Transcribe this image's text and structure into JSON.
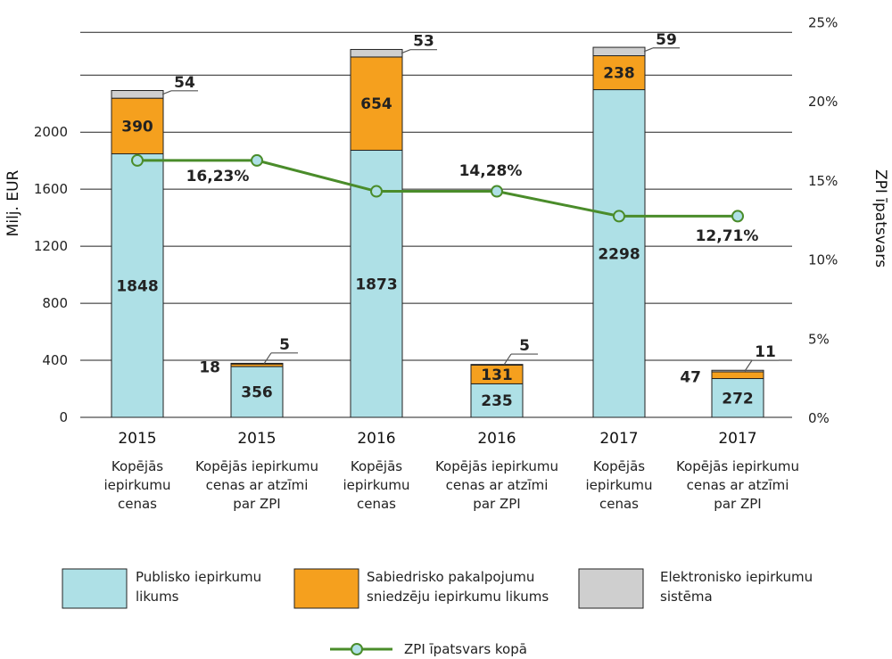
{
  "chart_data": {
    "type": "bar",
    "stacked": true,
    "grid": true,
    "legend_position": "bottom",
    "y_label": "Milj. EUR",
    "y2_label": "ZPI īpatsvars",
    "ylim": [
      0,
      2700
    ],
    "y_ticks": [
      "0",
      "400",
      "800",
      "1200",
      "1600",
      "2000"
    ],
    "y_tick_values": [
      0,
      400,
      800,
      1200,
      1600,
      2000
    ],
    "y2lim": [
      0,
      25
    ],
    "y2_ticks": [
      "0%",
      "5%",
      "10%",
      "15%",
      "20%",
      "25%"
    ],
    "y2_tick_values": [
      0,
      5,
      10,
      15,
      20,
      25
    ],
    "categories": [
      {
        "year": "2015",
        "desc": [
          "Kopējās",
          "iepirkumu",
          "cenas"
        ]
      },
      {
        "year": "2015",
        "desc": [
          "Kopējās iepirkumu",
          "cenas ar atzīmi",
          "par ZPI"
        ]
      },
      {
        "year": "2016",
        "desc": [
          "Kopējās",
          "iepirkumu",
          "cenas"
        ]
      },
      {
        "year": "2016",
        "desc": [
          "Kopējās iepirkumu",
          "cenas ar atzīmi",
          "par ZPI"
        ]
      },
      {
        "year": "2017",
        "desc": [
          "Kopējās",
          "iepirkumu",
          "cenas"
        ]
      },
      {
        "year": "2017",
        "desc": [
          "Kopējās iepirkumu",
          "cenas ar atzīmi",
          "par ZPI"
        ]
      }
    ],
    "series": [
      {
        "name": "Publisko iepirkumu likums",
        "legend_lines": [
          "Publisko iepirkumu",
          "likums"
        ],
        "color": "#aee0e6",
        "values": [
          1848,
          356,
          1873,
          235,
          2298,
          272
        ],
        "labels": [
          "1848",
          "356",
          "1873",
          "235",
          "2298",
          "272"
        ]
      },
      {
        "name": "Sabiedrisko pakalpojumu sniedzēju iepirkumu likums",
        "legend_lines": [
          "Sabiedrisko pakalpojumu",
          "sniedzēju iepirkumu likums"
        ],
        "color": "#f5a01e",
        "values": [
          390,
          18,
          654,
          131,
          238,
          47
        ],
        "labels": [
          "390",
          "18",
          "654",
          "131",
          "238",
          "47"
        ]
      },
      {
        "name": "Elektronisko iepirkumu sistēma",
        "legend_lines": [
          "Elektronisko iepirkumu",
          "sistēma"
        ],
        "color": "#cfcfcf",
        "values": [
          54,
          5,
          53,
          5,
          59,
          11
        ],
        "labels": [
          "54",
          "5",
          "53",
          "5",
          "59",
          "11"
        ]
      }
    ],
    "line": {
      "name": "ZPI īpatsvars kopā",
      "color": "#4a8c2a",
      "marker_color": "#aee0e6",
      "values": [
        16.23,
        16.23,
        14.28,
        14.28,
        12.71,
        12.71
      ],
      "point_labels": [
        "",
        "16,23%",
        "",
        "14,28%",
        "",
        "12,71%"
      ]
    }
  }
}
